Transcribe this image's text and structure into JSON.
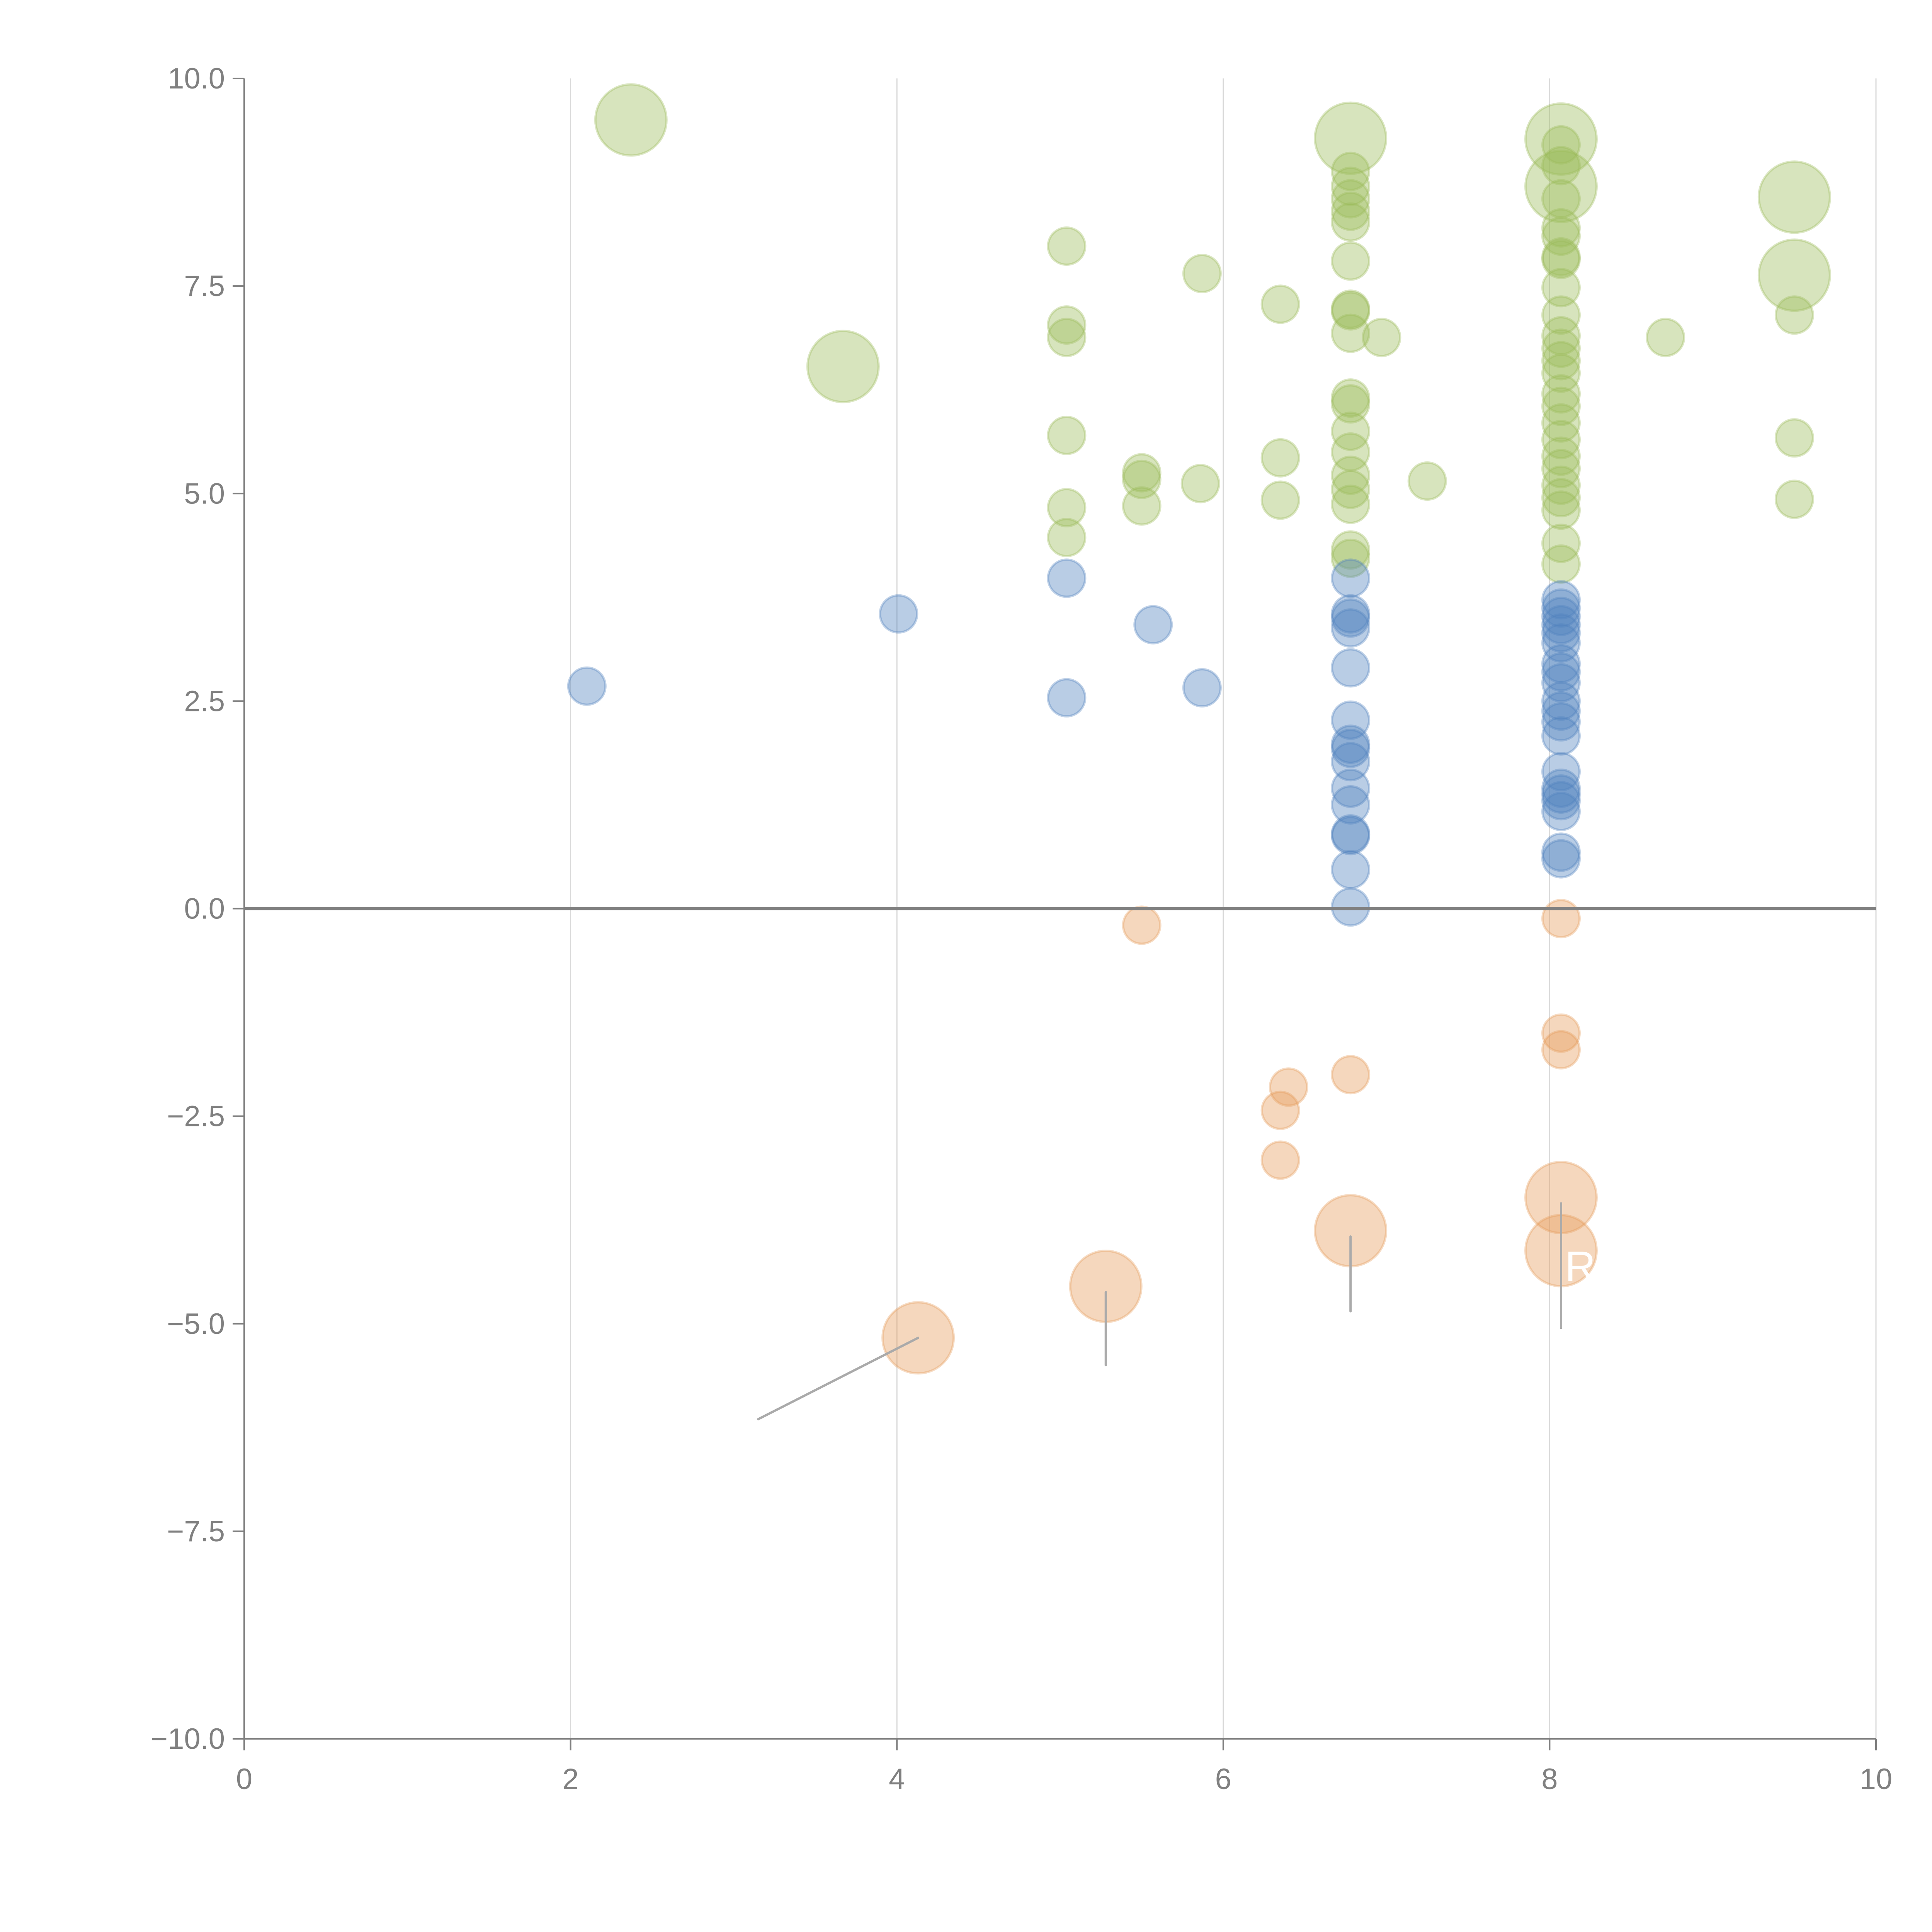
{
  "chart_data": {
    "type": "scatter",
    "title": "",
    "xlabel": "",
    "ylabel": "",
    "xlim": [
      0,
      10
    ],
    "ylim": [
      -10,
      10
    ],
    "x_ticks": [
      "0",
      "2",
      "4",
      "6",
      "8",
      "10"
    ],
    "x_tick_values": [
      0,
      2,
      4,
      6,
      8,
      10
    ],
    "y_ticks": [
      "10.0",
      "7.5",
      "5.0",
      "2.5",
      "0.0",
      "−2.5",
      "−5.0",
      "−7.5",
      "−10.0"
    ],
    "y_tick_values": [
      10,
      7.5,
      5,
      2.5,
      0,
      -2.5,
      -5,
      -7.5,
      -10
    ],
    "grid": "vertical",
    "zero_line": true,
    "colors": {
      "green": "#9bbb59",
      "blue": "#4f81bd",
      "orange": "#e69a5a"
    },
    "series": [
      {
        "name": "green",
        "color": "#9bbb59",
        "points": [
          {
            "x": 2.37,
            "y": 9.5,
            "size": "large"
          },
          {
            "x": 3.67,
            "y": 6.53,
            "size": "large"
          },
          {
            "x": 5.04,
            "y": 7.98
          },
          {
            "x": 5.04,
            "y": 7.03
          },
          {
            "x": 5.04,
            "y": 6.88
          },
          {
            "x": 5.04,
            "y": 5.7
          },
          {
            "x": 5.04,
            "y": 4.83
          },
          {
            "x": 5.04,
            "y": 4.47
          },
          {
            "x": 5.5,
            "y": 5.25
          },
          {
            "x": 5.5,
            "y": 5.17
          },
          {
            "x": 5.5,
            "y": 4.85
          },
          {
            "x": 5.87,
            "y": 7.65
          },
          {
            "x": 5.86,
            "y": 5.12
          },
          {
            "x": 6.35,
            "y": 7.28
          },
          {
            "x": 6.35,
            "y": 5.43
          },
          {
            "x": 6.35,
            "y": 4.92
          },
          {
            "x": 6.78,
            "y": 9.28,
            "size": "large"
          },
          {
            "x": 6.78,
            "y": 8.88
          },
          {
            "x": 6.78,
            "y": 8.7
          },
          {
            "x": 6.78,
            "y": 8.55
          },
          {
            "x": 6.78,
            "y": 8.4
          },
          {
            "x": 6.78,
            "y": 8.27
          },
          {
            "x": 6.78,
            "y": 7.8
          },
          {
            "x": 6.78,
            "y": 7.22
          },
          {
            "x": 6.78,
            "y": 7.2
          },
          {
            "x": 6.78,
            "y": 6.93
          },
          {
            "x": 6.78,
            "y": 6.15
          },
          {
            "x": 6.78,
            "y": 6.08
          },
          {
            "x": 6.78,
            "y": 5.75
          },
          {
            "x": 6.78,
            "y": 5.5
          },
          {
            "x": 6.78,
            "y": 5.22
          },
          {
            "x": 6.78,
            "y": 5.05
          },
          {
            "x": 6.78,
            "y": 4.87
          },
          {
            "x": 6.78,
            "y": 4.32
          },
          {
            "x": 6.78,
            "y": 4.22
          },
          {
            "x": 6.97,
            "y": 6.88
          },
          {
            "x": 7.25,
            "y": 5.15
          },
          {
            "x": 8.07,
            "y": 9.27,
            "size": "large"
          },
          {
            "x": 8.07,
            "y": 8.7,
            "size": "large"
          },
          {
            "x": 8.07,
            "y": 9.2
          },
          {
            "x": 8.07,
            "y": 8.95
          },
          {
            "x": 8.07,
            "y": 8.55
          },
          {
            "x": 8.07,
            "y": 8.2
          },
          {
            "x": 8.07,
            "y": 8.1
          },
          {
            "x": 8.07,
            "y": 7.85
          },
          {
            "x": 8.07,
            "y": 7.82
          },
          {
            "x": 8.07,
            "y": 7.48
          },
          {
            "x": 8.07,
            "y": 7.15
          },
          {
            "x": 8.07,
            "y": 6.9
          },
          {
            "x": 8.07,
            "y": 6.75
          },
          {
            "x": 8.07,
            "y": 6.6
          },
          {
            "x": 8.07,
            "y": 6.45
          },
          {
            "x": 8.07,
            "y": 6.2
          },
          {
            "x": 8.07,
            "y": 6.05
          },
          {
            "x": 8.07,
            "y": 5.85
          },
          {
            "x": 8.07,
            "y": 5.65
          },
          {
            "x": 8.07,
            "y": 5.45
          },
          {
            "x": 8.07,
            "y": 5.3
          },
          {
            "x": 8.07,
            "y": 5.1
          },
          {
            "x": 8.07,
            "y": 4.95
          },
          {
            "x": 8.07,
            "y": 4.8
          },
          {
            "x": 8.07,
            "y": 4.4
          },
          {
            "x": 8.07,
            "y": 4.15
          },
          {
            "x": 8.71,
            "y": 6.88
          },
          {
            "x": 9.5,
            "y": 8.57,
            "size": "large"
          },
          {
            "x": 9.5,
            "y": 7.63,
            "size": "large"
          },
          {
            "x": 9.5,
            "y": 7.15
          },
          {
            "x": 9.5,
            "y": 5.67
          },
          {
            "x": 9.5,
            "y": 4.93
          }
        ]
      },
      {
        "name": "blue",
        "color": "#4f81bd",
        "points": [
          {
            "x": 2.1,
            "y": 2.68
          },
          {
            "x": 4.01,
            "y": 3.55
          },
          {
            "x": 5.04,
            "y": 3.98
          },
          {
            "x": 5.04,
            "y": 2.54
          },
          {
            "x": 5.57,
            "y": 3.42
          },
          {
            "x": 5.87,
            "y": 2.66
          },
          {
            "x": 6.78,
            "y": 3.98
          },
          {
            "x": 6.78,
            "y": 3.55
          },
          {
            "x": 6.78,
            "y": 3.5
          },
          {
            "x": 6.78,
            "y": 3.38
          },
          {
            "x": 6.78,
            "y": 2.9
          },
          {
            "x": 6.78,
            "y": 2.27
          },
          {
            "x": 6.78,
            "y": 1.98
          },
          {
            "x": 6.78,
            "y": 1.93
          },
          {
            "x": 6.78,
            "y": 1.77
          },
          {
            "x": 6.78,
            "y": 1.45
          },
          {
            "x": 6.78,
            "y": 1.25
          },
          {
            "x": 6.78,
            "y": 0.9
          },
          {
            "x": 6.78,
            "y": 0.88
          },
          {
            "x": 6.78,
            "y": 0.47
          },
          {
            "x": 6.78,
            "y": 0.02
          },
          {
            "x": 8.07,
            "y": 3.72
          },
          {
            "x": 8.07,
            "y": 3.62
          },
          {
            "x": 8.07,
            "y": 3.52
          },
          {
            "x": 8.07,
            "y": 3.42
          },
          {
            "x": 8.07,
            "y": 3.32
          },
          {
            "x": 8.07,
            "y": 3.2
          },
          {
            "x": 8.07,
            "y": 2.95
          },
          {
            "x": 8.07,
            "y": 2.85
          },
          {
            "x": 8.07,
            "y": 2.72
          },
          {
            "x": 8.07,
            "y": 2.5
          },
          {
            "x": 8.07,
            "y": 2.38
          },
          {
            "x": 8.07,
            "y": 2.25
          },
          {
            "x": 8.07,
            "y": 2.08
          },
          {
            "x": 8.07,
            "y": 1.65
          },
          {
            "x": 8.07,
            "y": 1.45
          },
          {
            "x": 8.07,
            "y": 1.38
          },
          {
            "x": 8.07,
            "y": 1.3
          },
          {
            "x": 8.07,
            "y": 1.17
          },
          {
            "x": 8.07,
            "y": 0.68
          },
          {
            "x": 8.07,
            "y": 0.6
          }
        ]
      },
      {
        "name": "orange",
        "color": "#e69a5a",
        "points": [
          {
            "x": 5.5,
            "y": -0.2
          },
          {
            "x": 6.4,
            "y": -2.15
          },
          {
            "x": 6.35,
            "y": -2.43
          },
          {
            "x": 6.35,
            "y": -3.03
          },
          {
            "x": 6.78,
            "y": -2.0
          },
          {
            "x": 8.07,
            "y": -0.12
          },
          {
            "x": 8.07,
            "y": -1.5
          },
          {
            "x": 8.07,
            "y": -1.7
          },
          {
            "x": 4.13,
            "y": -5.17,
            "size": "large"
          },
          {
            "x": 5.28,
            "y": -4.55,
            "size": "large"
          },
          {
            "x": 6.78,
            "y": -3.88,
            "size": "large"
          },
          {
            "x": 8.07,
            "y": -3.48,
            "size": "large"
          },
          {
            "x": 8.07,
            "y": -4.12,
            "size": "large"
          }
        ]
      }
    ],
    "annotations": [
      {
        "text": "R",
        "x": 8.07,
        "y": -4.3,
        "color": "#ffffff"
      }
    ]
  }
}
